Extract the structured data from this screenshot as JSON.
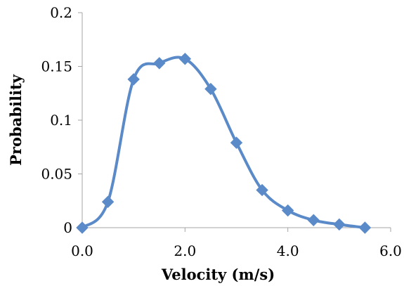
{
  "chart_data": {
    "type": "scatter",
    "title": "",
    "xlabel": "Velocity (m/s)",
    "ylabel": "Probability",
    "xlim": [
      0,
      6
    ],
    "ylim": [
      0,
      0.2
    ],
    "x_ticks": [
      0,
      2,
      4,
      6
    ],
    "x_tick_labels": [
      "0.0",
      "2.0",
      "4.0",
      "6.0"
    ],
    "y_ticks": [
      0,
      0.05,
      0.1,
      0.15,
      0.2
    ],
    "y_tick_labels": [
      "0",
      "0.05",
      "0.1",
      "0.15",
      "0.2"
    ],
    "grid": false,
    "legend": "none",
    "line_style": "smooth",
    "marker": "diamond",
    "series": [
      {
        "color": "#5b8ac9",
        "points": [
          {
            "x": 0.0,
            "y": 0.0
          },
          {
            "x": 0.5,
            "y": 0.024
          },
          {
            "x": 1.0,
            "y": 0.138
          },
          {
            "x": 1.5,
            "y": 0.153
          },
          {
            "x": 2.0,
            "y": 0.157
          },
          {
            "x": 2.5,
            "y": 0.129
          },
          {
            "x": 3.0,
            "y": 0.079
          },
          {
            "x": 3.5,
            "y": 0.035
          },
          {
            "x": 4.0,
            "y": 0.016
          },
          {
            "x": 4.5,
            "y": 0.007
          },
          {
            "x": 5.0,
            "y": 0.003
          },
          {
            "x": 5.5,
            "y": 0.0
          }
        ]
      }
    ]
  }
}
